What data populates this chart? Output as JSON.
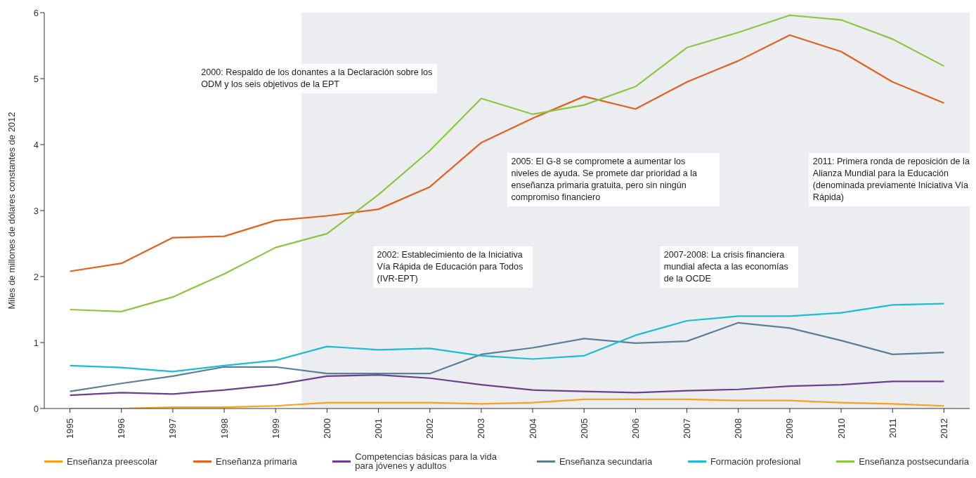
{
  "chart_data": {
    "type": "line",
    "ylabel": "Miles de millones de dólares constantes de 2012",
    "x": [
      1995,
      1996,
      1997,
      1998,
      1999,
      2000,
      2001,
      2002,
      2003,
      2004,
      2005,
      2006,
      2007,
      2008,
      2009,
      2010,
      2011,
      2012
    ],
    "xlim": [
      1994.5,
      2012.5
    ],
    "xticks": [
      1995,
      1996,
      1997,
      1998,
      1999,
      2000,
      2001,
      2002,
      2003,
      2004,
      2005,
      2006,
      2007,
      2008,
      2009,
      2010,
      2011,
      2012
    ],
    "ylim": [
      0,
      6
    ],
    "yticks": [
      0,
      1,
      2,
      3,
      4,
      5,
      6
    ],
    "grid": false,
    "legend": "bottom",
    "marker": "none",
    "line_style": "solid",
    "series": [
      {
        "name": "Enseñanza preescolar",
        "color": "#f7a21b",
        "values": [
          0.0,
          0.0,
          0.02,
          0.02,
          0.04,
          0.09,
          0.09,
          0.09,
          0.07,
          0.09,
          0.14,
          0.14,
          0.14,
          0.12,
          0.12,
          0.09,
          0.07,
          0.04
        ]
      },
      {
        "name": "Enseñanza primaria",
        "color": "#e4601e",
        "values": [
          2.08,
          2.2,
          2.59,
          2.61,
          2.85,
          2.92,
          3.02,
          3.36,
          4.03,
          4.4,
          4.73,
          4.54,
          4.95,
          5.27,
          5.66,
          5.41,
          4.95,
          4.63
        ]
      },
      {
        "name": "Competencias básicas para la vida para jóvenes y adultos",
        "color": "#6b3f8f",
        "values": [
          0.2,
          0.24,
          0.22,
          0.28,
          0.36,
          0.49,
          0.51,
          0.46,
          0.36,
          0.28,
          0.26,
          0.24,
          0.27,
          0.29,
          0.34,
          0.36,
          0.41,
          0.41
        ]
      },
      {
        "name": "Enseñanza secundaria",
        "color": "#5b7f95",
        "values": [
          0.26,
          0.38,
          0.49,
          0.63,
          0.63,
          0.53,
          0.53,
          0.53,
          0.82,
          0.92,
          1.06,
          0.99,
          1.02,
          1.3,
          1.22,
          1.03,
          0.82,
          0.85
        ]
      },
      {
        "name": "Formación profesional",
        "color": "#1cbcd4",
        "values": [
          0.65,
          0.62,
          0.56,
          0.65,
          0.73,
          0.94,
          0.89,
          0.91,
          0.8,
          0.75,
          0.8,
          1.11,
          1.33,
          1.4,
          1.4,
          1.45,
          1.57,
          1.59
        ]
      },
      {
        "name": "Enseñanza postsecundaria",
        "color": "#8cc63f",
        "values": [
          1.5,
          1.47,
          1.69,
          2.04,
          2.44,
          2.65,
          3.24,
          3.91,
          4.7,
          4.46,
          4.6,
          4.88,
          5.47,
          5.7,
          5.96,
          5.89,
          5.6,
          5.19
        ]
      }
    ],
    "bands": [
      {
        "axis": "x",
        "from": 1999.5,
        "to": 2012.5,
        "color": "#ebedf0"
      }
    ],
    "annotations": [
      "2000: Respaldo de los donantes a la Declaración sobre los ODM y los seis objetivos de la EPT",
      "2002: Establecimiento de la Iniciativa Vía Rápida de Educación para Todos (IVR-EPT)",
      "2005: El G-8 se compromete a aumentar los niveles de ayuda. Se promete dar prioridad a la enseñanza primaria gratuita, pero sin ningún compromiso financiero",
      "2007-2008: La crisis financiera mundial afecta a las economías de la OCDE",
      "2011: Primera ronda de reposición de la Alianza Mundial para la Educación (denominada previamente Iniciativa Vía Rápida)"
    ]
  }
}
